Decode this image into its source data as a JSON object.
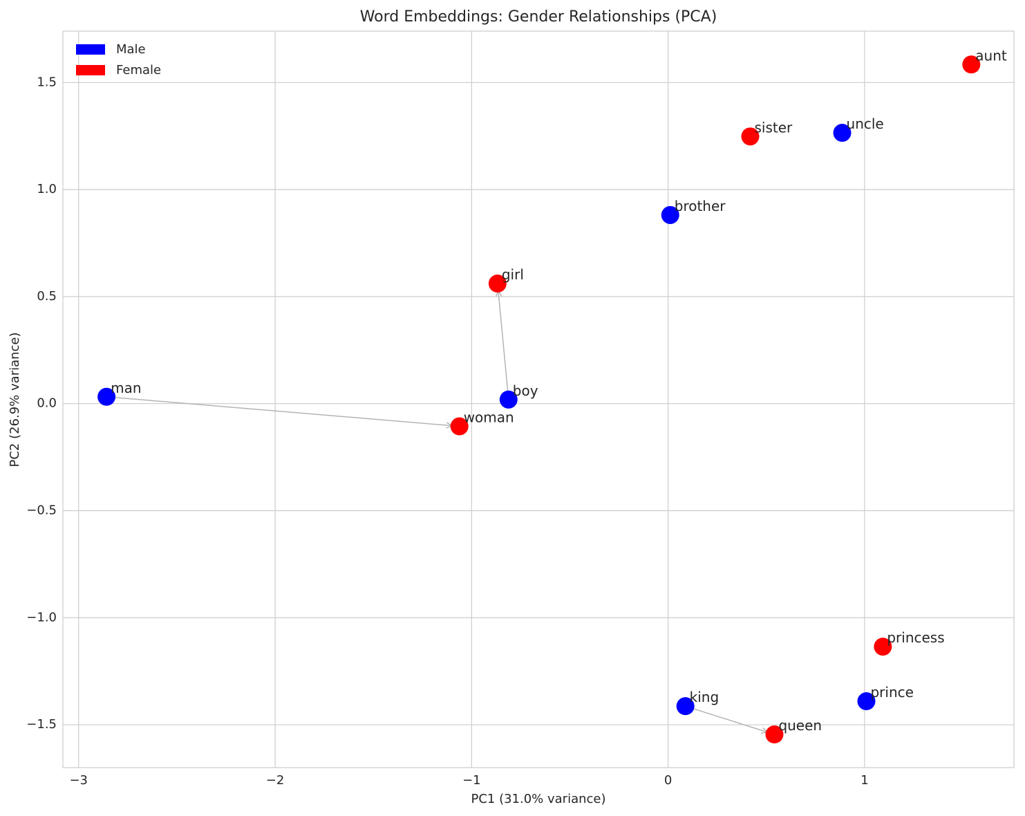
{
  "chart_data": {
    "type": "scatter",
    "title": "Word Embeddings: Gender Relationships (PCA)",
    "x_label": "PC1 (31.0% variance)",
    "y_label": "PC2 (26.9% variance)",
    "xlim": [
      -3.08,
      1.76
    ],
    "ylim": [
      -1.7,
      1.74
    ],
    "xticks": [
      {
        "value": -3,
        "label": "−3"
      },
      {
        "value": -2,
        "label": "−2"
      },
      {
        "value": -1,
        "label": "−1"
      },
      0,
      1
    ],
    "yticks": [
      {
        "value": -1.5,
        "label": "−1.5"
      },
      {
        "value": -1.0,
        "label": "−1.0"
      },
      {
        "value": -0.5,
        "label": "−0.5"
      },
      {
        "value": 0.0,
        "label": "0.0"
      },
      {
        "value": 0.5,
        "label": "0.5"
      },
      {
        "value": 1.0,
        "label": "1.0"
      },
      {
        "value": 1.5,
        "label": "1.5"
      }
    ],
    "grid": true,
    "legend": "upper left",
    "series": [
      {
        "name": "Male",
        "color": "#0000ff",
        "labels": [
          "man",
          "boy",
          "king",
          "prince",
          "brother",
          "uncle"
        ],
        "x": [
          -2.858,
          -0.812,
          0.088,
          1.009,
          0.011,
          0.886
        ],
        "y": [
          0.032,
          0.019,
          -1.413,
          -1.39,
          0.881,
          1.265
        ]
      },
      {
        "name": "Female",
        "color": "#ff0000",
        "labels": [
          "woman",
          "girl",
          "queen",
          "princess",
          "sister",
          "aunt"
        ],
        "x": [
          -1.062,
          -0.868,
          0.541,
          1.093,
          0.418,
          1.543
        ],
        "y": [
          -0.106,
          0.561,
          -1.545,
          -1.135,
          1.248,
          1.584
        ]
      }
    ]
  }
}
